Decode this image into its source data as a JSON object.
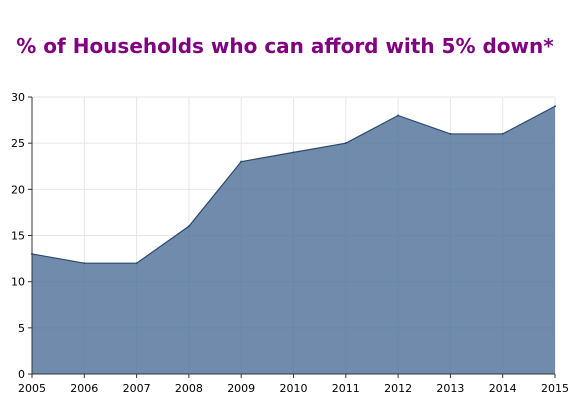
{
  "chart_data": {
    "type": "area",
    "title": "% of Households who can afford with 5% down*",
    "xlabel": "",
    "ylabel": "",
    "x": [
      "2005",
      "2006",
      "2007",
      "2008",
      "2009",
      "2010",
      "2011",
      "2012",
      "2013",
      "2014",
      "2015"
    ],
    "values": [
      13,
      12,
      12,
      16,
      23,
      24,
      25,
      28,
      26,
      26,
      29
    ],
    "ylim": [
      0,
      30
    ],
    "yticks": [
      "0",
      "5",
      "10",
      "15",
      "20",
      "25",
      "30"
    ],
    "grid": true,
    "legend": "none",
    "colors": {
      "fill": "#50729A",
      "line": "#2B4A6F",
      "title": "#800080",
      "grid": "#E6E6E6"
    }
  }
}
